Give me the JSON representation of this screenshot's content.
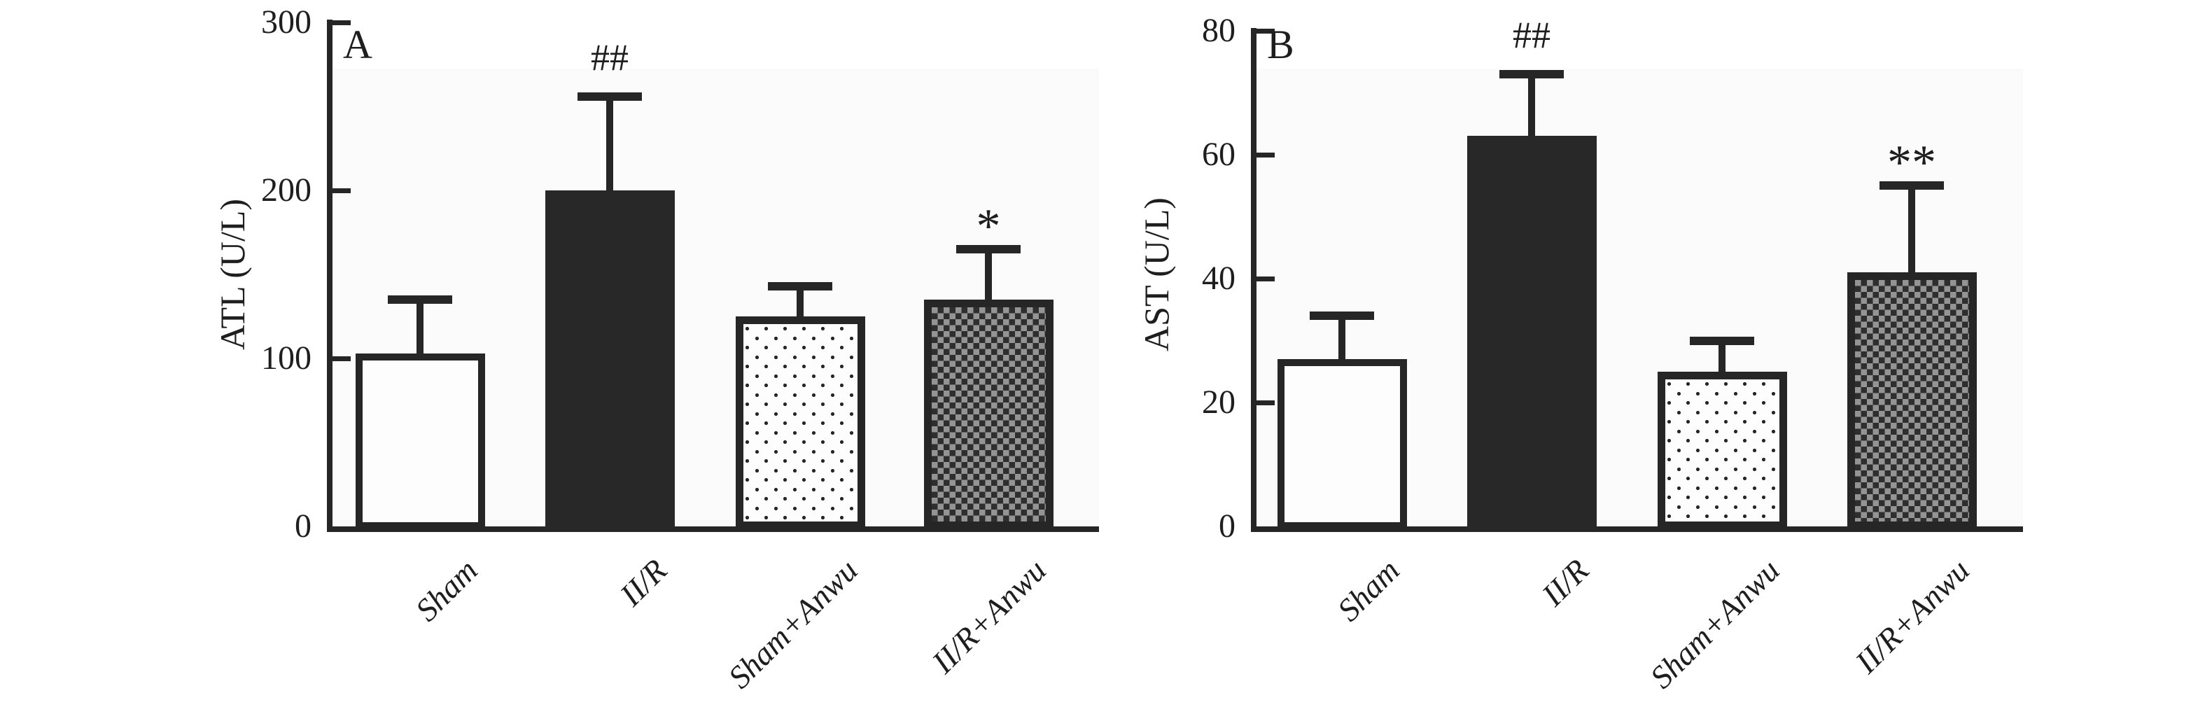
{
  "figure": {
    "colors": {
      "ink": "#262626",
      "solid_bar_fill": "#282828",
      "checker_gray": "#949494",
      "panel_background": "#fbfbfb",
      "page_background": "#ffffff"
    }
  },
  "chart_data": [
    {
      "type": "bar",
      "panel_label": "A",
      "title": "",
      "xlabel": "",
      "ylabel": "ATL (U/L)",
      "ylim": [
        0,
        300
      ],
      "yticks": [
        0,
        100,
        200,
        300
      ],
      "grid": false,
      "legend": "none",
      "categories": [
        "Sham",
        "II/R",
        "Sham+Anwu",
        "II/R+Anwu"
      ],
      "values": [
        103,
        200,
        125,
        135
      ],
      "error_sd": [
        32,
        56,
        18,
        30
      ],
      "error_tops": [
        135,
        256,
        143,
        165
      ],
      "significance": [
        "",
        "##",
        "",
        "*"
      ],
      "bar_styles": [
        "white",
        "black",
        "dotted",
        "checker"
      ]
    },
    {
      "type": "bar",
      "panel_label": "B",
      "title": "",
      "xlabel": "",
      "ylabel": "AST (U/L)",
      "ylim": [
        0,
        80
      ],
      "yticks": [
        0,
        20,
        40,
        60,
        80
      ],
      "grid": false,
      "legend": "none",
      "categories": [
        "Sham",
        "II/R",
        "Sham+Anwu",
        "II/R+Anwu"
      ],
      "values": [
        27,
        63,
        25,
        41
      ],
      "error_sd": [
        7,
        10,
        5,
        14
      ],
      "error_tops": [
        34,
        73,
        30,
        55
      ],
      "significance": [
        "",
        "##",
        "",
        "**"
      ],
      "bar_styles": [
        "white",
        "black",
        "dotted",
        "checker"
      ]
    }
  ]
}
